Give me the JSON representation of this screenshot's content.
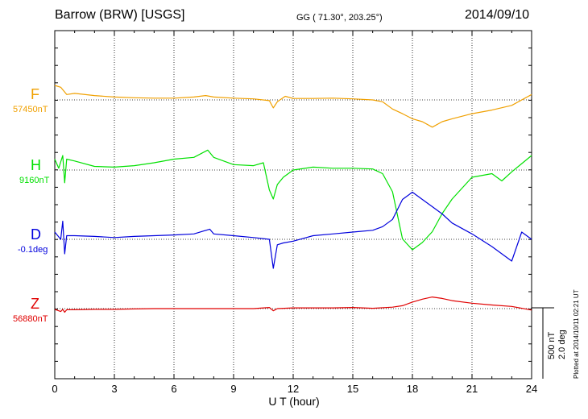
{
  "header": {
    "station": "Barrow (BRW)  [USGS]",
    "coords": "GG ( 71.30°, 203.25°)",
    "date": "2014/09/10"
  },
  "footer": {
    "xlabel": "U T (hour)",
    "plotted": "Plotted at 2014/10/11 02:21  UT",
    "scale_nt": "500 nT",
    "scale_deg": "2.0 deg"
  },
  "colors": {
    "F": "#f0a000",
    "H": "#00e000",
    "D": "#0000dd",
    "Z": "#e00000"
  },
  "chart_data": {
    "type": "line",
    "xlabel": "U T (hour)",
    "xlim": [
      0,
      24
    ],
    "xticks": [
      "0",
      "3",
      "6",
      "9",
      "12",
      "15",
      "18",
      "21",
      "24"
    ],
    "grid": true,
    "series": [
      {
        "name": "F",
        "baseline": "57450nT",
        "color": "#f0a000",
        "x": [
          0,
          0.3,
          0.6,
          1,
          2,
          3,
          4,
          5,
          6,
          7,
          7.6,
          8,
          9,
          10,
          10.8,
          11,
          11.2,
          11.6,
          12,
          13,
          14,
          15,
          16,
          16.5,
          17,
          17.5,
          18,
          18.5,
          19,
          19.5,
          20,
          21,
          22,
          23,
          24
        ],
        "y": [
          -40,
          -35,
          -15,
          -18,
          -12,
          -8,
          -6,
          -5,
          -5,
          -8,
          -12,
          -8,
          -5,
          -3,
          2,
          22,
          5,
          -10,
          -4,
          -4,
          -5,
          -3,
          0,
          5,
          25,
          38,
          52,
          60,
          75,
          60,
          52,
          38,
          28,
          15,
          -15
        ]
      },
      {
        "name": "H",
        "baseline": "9160nT",
        "color": "#00e000",
        "x": [
          0,
          0.2,
          0.4,
          0.5,
          0.6,
          1,
          2,
          3,
          4,
          5,
          6,
          7,
          7.7,
          8,
          9,
          10,
          10.5,
          10.8,
          11,
          11.2,
          11.5,
          12,
          13,
          14,
          15,
          16,
          16.5,
          17,
          17.5,
          18,
          18.5,
          19,
          19.5,
          20,
          21,
          22,
          22.5,
          23,
          24
        ],
        "y": [
          -30,
          -5,
          -40,
          35,
          -30,
          -25,
          -10,
          -8,
          -12,
          -20,
          -30,
          -35,
          -55,
          -35,
          -15,
          -12,
          -20,
          55,
          80,
          40,
          20,
          0,
          -8,
          -5,
          -5,
          -3,
          10,
          60,
          190,
          220,
          200,
          170,
          120,
          80,
          20,
          10,
          30,
          5,
          -40
        ]
      },
      {
        "name": "D",
        "baseline": "-0.1deg",
        "color": "#0000dd",
        "x": [
          0,
          0.3,
          0.4,
          0.5,
          0.6,
          1,
          2,
          3,
          4,
          5,
          6,
          7,
          7.8,
          8,
          9,
          10,
          10.8,
          11,
          11.2,
          11.5,
          12,
          13,
          14,
          15,
          16,
          16.5,
          17,
          17.5,
          18,
          18.5,
          19,
          19.5,
          20,
          21,
          22,
          22.5,
          23,
          23.5,
          24
        ],
        "y": [
          -20,
          0,
          -50,
          40,
          -10,
          -10,
          -8,
          -5,
          -8,
          -10,
          -12,
          -15,
          -28,
          -15,
          -10,
          -5,
          0,
          80,
          15,
          10,
          5,
          -10,
          -15,
          -20,
          -25,
          -35,
          -55,
          -110,
          -130,
          -110,
          -90,
          -70,
          -45,
          -15,
          20,
          40,
          60,
          -20,
          0
        ]
      },
      {
        "name": "Z",
        "baseline": "56880nT",
        "color": "#e00000",
        "x": [
          0,
          0.3,
          0.4,
          0.5,
          0.6,
          1,
          2,
          3,
          4,
          5,
          6,
          7,
          8,
          9,
          10,
          10.8,
          11,
          11.2,
          12,
          13,
          14,
          15,
          16,
          17,
          17.5,
          18,
          18.5,
          19,
          19.5,
          20,
          21,
          22,
          23,
          24
        ],
        "y": [
          2,
          8,
          2,
          10,
          3,
          3,
          2,
          2,
          1,
          0,
          0,
          0,
          0,
          0,
          0,
          -3,
          6,
          0,
          -2,
          -2,
          -2,
          -3,
          -1,
          -4,
          -8,
          -18,
          -26,
          -32,
          -28,
          -22,
          -15,
          -10,
          -6,
          4
        ]
      }
    ]
  }
}
